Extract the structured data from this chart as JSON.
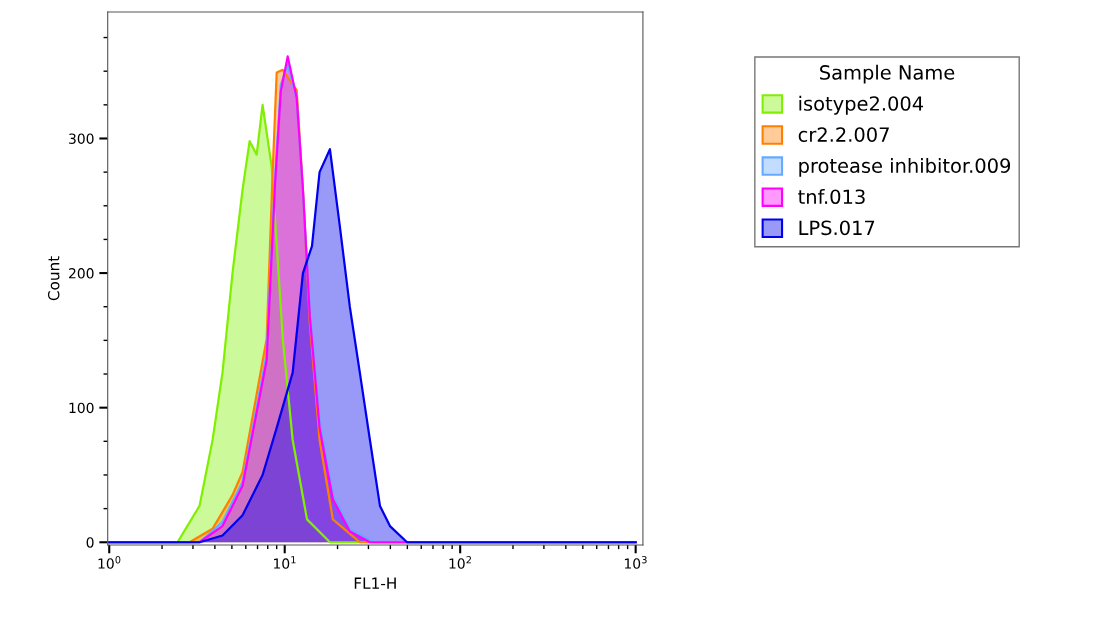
{
  "chart_data": {
    "type": "area",
    "xlabel": "FL1-H",
    "ylabel": "Count",
    "legend_title": "Sample Name",
    "legend": "right",
    "log": "x",
    "grid": false,
    "xlim": [
      0.98,
      1100
    ],
    "xticks": [
      {
        "value": 1,
        "label": "10$^{0}$"
      },
      {
        "value": 10,
        "label": "10$^{1}$"
      },
      {
        "value": 100,
        "label": "10$^{2}$"
      },
      {
        "value": 1000,
        "label": "10$^{3}$"
      }
    ],
    "ylim": [
      -2,
      394
    ],
    "yticks": [
      0,
      100,
      200,
      300
    ],
    "series": [
      {
        "name": "isotype2.004",
        "color": "#80f000",
        "x": [
          1,
          2.45,
          3.27,
          3.88,
          4.42,
          5.04,
          5.75,
          6.31,
          6.92,
          7.48,
          8.43,
          9.75,
          11.1,
          13.4,
          18.1,
          1000
        ],
        "values": [
          0,
          0,
          27,
          76,
          126,
          200,
          262,
          298,
          288,
          325,
          279,
          151,
          76,
          17,
          0,
          0
        ]
      },
      {
        "name": "cr2.2.007",
        "color": "#ff8000",
        "x": [
          1,
          2.87,
          3.88,
          5.04,
          5.75,
          7.89,
          8.54,
          9.0,
          9.75,
          11.7,
          12.7,
          13.9,
          15.8,
          18.8,
          26.8,
          1000
        ],
        "values": [
          0,
          0,
          10,
          35,
          52,
          151,
          275,
          349,
          351,
          336,
          262,
          163,
          76,
          17,
          0,
          0
        ]
      },
      {
        "name": "protease inhibitor.009",
        "color": "#66aaff",
        "x": [
          1,
          3.27,
          4.42,
          5.75,
          7.89,
          8.8,
          9.5,
          10.4,
          11.7,
          12.7,
          13.9,
          15.8,
          18.8,
          23.5,
          32,
          1000
        ],
        "values": [
          0,
          0,
          15,
          45,
          140,
          270,
          340,
          355,
          330,
          260,
          170,
          90,
          35,
          10,
          0,
          0
        ]
      },
      {
        "name": "tnf.013",
        "color": "#ff00ff",
        "x": [
          1,
          3.27,
          4.42,
          5.75,
          7.89,
          8.8,
          9.5,
          10.4,
          11.7,
          12.7,
          13.9,
          15.8,
          18.8,
          23.5,
          30.6,
          1000
        ],
        "values": [
          0,
          0,
          12,
          42,
          135,
          265,
          335,
          361,
          330,
          262,
          168,
          85,
          32,
          8,
          0,
          0
        ]
      },
      {
        "name": "LPS.017",
        "color": "#0000ee",
        "x": [
          1,
          3.27,
          4.42,
          5.75,
          7.48,
          9.0,
          11.1,
          12.7,
          14.3,
          15.8,
          18.1,
          20.6,
          23.5,
          26.8,
          30.6,
          34.9,
          39.8,
          49.8,
          1000
        ],
        "values": [
          0,
          0,
          5,
          20,
          50,
          85,
          126,
          200,
          220,
          275,
          292,
          235,
          175,
          126,
          76,
          27,
          12,
          0,
          0
        ]
      }
    ]
  }
}
